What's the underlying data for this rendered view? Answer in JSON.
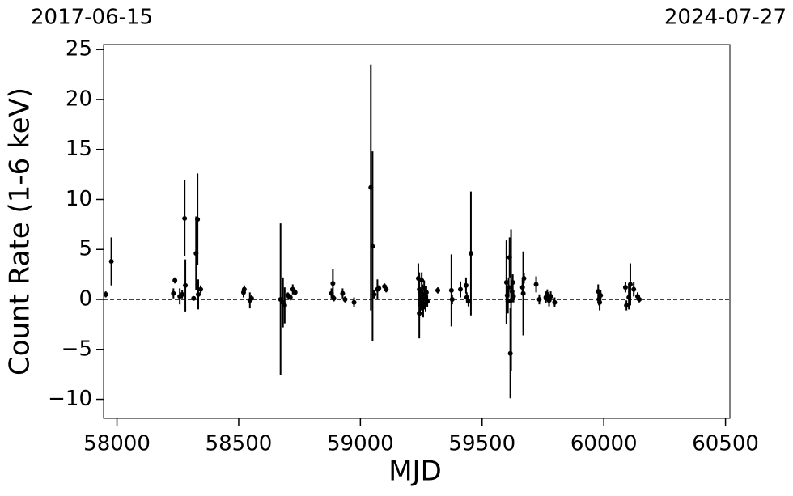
{
  "chart_data": {
    "type": "scatter",
    "x_label": "MJD",
    "y_label": "Count Rate (1-6 keV)",
    "start_date": "2017-06-15",
    "end_date": "2024-07-27",
    "color": "#000000",
    "xlim": [
      57945,
      60518
    ],
    "ylim": [
      -11.9,
      25.5
    ],
    "xticks": [
      58000,
      58500,
      59000,
      59500,
      60000,
      60500
    ],
    "yticks": [
      {
        "value": -10,
        "label": "−10"
      },
      {
        "value": -5,
        "label": "−5"
      },
      0,
      5,
      10,
      15,
      20,
      25
    ],
    "hline": 0,
    "x": [
      57954,
      57977,
      58232,
      58238,
      58258,
      58268,
      58278,
      58281,
      58315,
      58325,
      58331,
      58334,
      58344,
      58520,
      58523,
      58546,
      58553,
      58672,
      58682,
      58689,
      58702,
      58712,
      58722,
      58732,
      58881,
      58887,
      58891,
      58927,
      58937,
      58974,
      59043,
      59050,
      59056,
      59070,
      59076,
      59099,
      59106,
      59238,
      59242,
      59242,
      59245,
      59248,
      59252,
      59255,
      59258,
      59262,
      59265,
      59268,
      59271,
      59275,
      59318,
      59374,
      59377,
      59411,
      59434,
      59437,
      59444,
      59454,
      59600,
      59603,
      59606,
      59609,
      59613,
      59616,
      59619,
      59623,
      59626,
      59629,
      59666,
      59669,
      59672,
      59722,
      59735,
      59762,
      59768,
      59775,
      59782,
      59798,
      59977,
      59980,
      59983,
      59987,
      60089,
      60093,
      60103,
      60109,
      60123,
      60139,
      60146
    ],
    "values": [
      0.5,
      3.8,
      0.6,
      1.9,
      0.3,
      0.5,
      8.1,
      1.4,
      0.1,
      4.6,
      8.0,
      0.5,
      1.0,
      0.7,
      1.0,
      -0.1,
      0.1,
      0.0,
      -0.3,
      -0.6,
      0.4,
      0.2,
      1.0,
      0.7,
      0.6,
      1.6,
      0.1,
      0.6,
      0.0,
      -0.3,
      11.2,
      5.3,
      0.5,
      1.0,
      1.1,
      1.3,
      1.0,
      2.1,
      1.0,
      -1.4,
      -0.5,
      -0.1,
      1.9,
      0.5,
      -0.8,
      1.1,
      0.1,
      -0.4,
      0.7,
      -0.2,
      0.9,
      0.9,
      0.0,
      1.0,
      1.4,
      0.2,
      -0.2,
      4.6,
      1.7,
      0.4,
      -0.2,
      1.2,
      4.2,
      -5.4,
      -0.1,
      0.8,
      1.7,
      0.3,
      1.2,
      0.6,
      2.1,
      1.5,
      0.0,
      0.2,
      0.5,
      -0.1,
      0.3,
      -0.3,
      0.8,
      0.0,
      -0.3,
      0.4,
      1.2,
      -0.6,
      0.2,
      1.5,
      1.0,
      0.3,
      0.0
    ],
    "errors": [
      0.3,
      2.4,
      0.5,
      0.3,
      0.8,
      0.4,
      3.8,
      2.6,
      0.2,
      3.7,
      4.6,
      1.5,
      0.4,
      0.5,
      0.4,
      0.8,
      0.3,
      7.6,
      2.5,
      1.8,
      0.3,
      0.3,
      0.5,
      0.3,
      0.5,
      1.4,
      0.3,
      0.5,
      0.3,
      0.5,
      12.3,
      9.5,
      0.4,
      1.0,
      0.3,
      0.3,
      0.3,
      1.5,
      1.7,
      2.5,
      1.2,
      1.0,
      0.8,
      1.0,
      1.0,
      0.8,
      1.0,
      0.8,
      0.6,
      0.6,
      0.3,
      3.6,
      0.5,
      0.8,
      0.8,
      0.5,
      0.5,
      6.2,
      4.2,
      1.0,
      1.2,
      1.0,
      2.0,
      4.5,
      7.1,
      0.8,
      0.8,
      0.6,
      0.8,
      4.2,
      0.5,
      0.8,
      0.5,
      0.6,
      0.5,
      0.6,
      0.5,
      0.5,
      0.7,
      0.6,
      0.8,
      0.5,
      0.5,
      0.5,
      1.2,
      2.1,
      0.7,
      0.4,
      0.3
    ]
  }
}
